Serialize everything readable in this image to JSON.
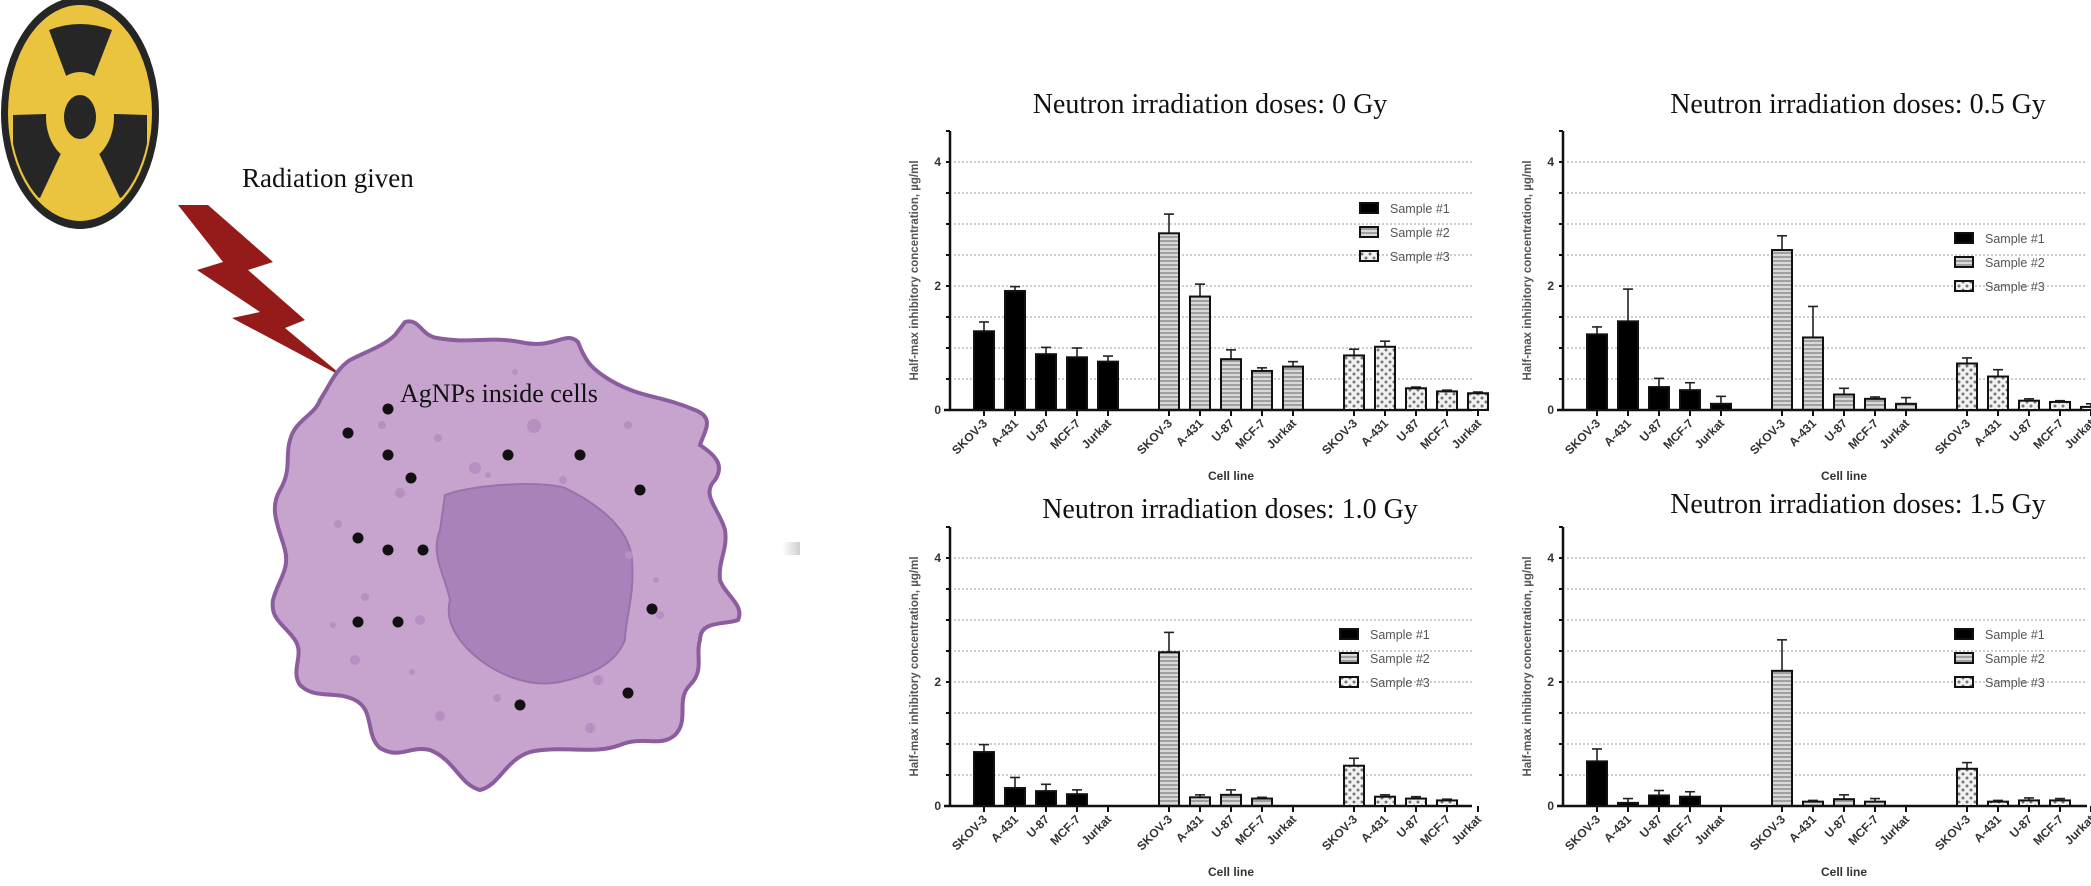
{
  "illustration": {
    "radiation_label": "Radiation given",
    "cell_label": "AgNPs inside cells",
    "colors": {
      "radiation_yellow": "#eac33f",
      "radiation_black": "#262626",
      "bolt_red": "#951b1b",
      "cell_fill": "#c7a4cd",
      "cell_border": "#8c5d9e",
      "nucleus_fill": "#a982b9"
    }
  },
  "chart_data": [
    {
      "type": "bar",
      "title": "Neutron irradiation doses: 0 Gy",
      "xlabel": "Cell line",
      "ylabel": "Half-max inhibitory concentration, µg/ml",
      "ylim": [
        0,
        4.5
      ],
      "yticks": [
        0,
        2,
        4
      ],
      "grid": true,
      "legend_position": "top-right",
      "groups": [
        "Sample #1",
        "Sample #2",
        "Sample #3"
      ],
      "categories": [
        "SKOV-3",
        "A-431",
        "U-87",
        "MCF-7",
        "Jurkat"
      ],
      "series": [
        {
          "name": "Sample #1",
          "pattern": "solid",
          "values": [
            1.27,
            1.92,
            0.9,
            0.85,
            0.78
          ],
          "errors": [
            0.15,
            0.07,
            0.11,
            0.15,
            0.09
          ]
        },
        {
          "name": "Sample #2",
          "pattern": "horizontal-stripes",
          "values": [
            2.85,
            1.83,
            0.82,
            0.63,
            0.7
          ],
          "errors": [
            0.31,
            0.2,
            0.15,
            0.05,
            0.08
          ]
        },
        {
          "name": "Sample #3",
          "pattern": "dots",
          "values": [
            0.88,
            1.02,
            0.35,
            0.3,
            0.27
          ],
          "errors": [
            0.1,
            0.09,
            0.02,
            0.02,
            0.02
          ]
        }
      ]
    },
    {
      "type": "bar",
      "title": "Neutron irradiation doses: 0.5 Gy",
      "xlabel": "Cell line",
      "ylabel": "Half-max inhibitory concentration, µg/ml",
      "ylim": [
        0,
        4.5
      ],
      "yticks": [
        0,
        2,
        4
      ],
      "grid": true,
      "legend_position": "top-right",
      "categories": [
        "SKOV-3",
        "A-431",
        "U-87",
        "MCF-7",
        "Jurkat"
      ],
      "series": [
        {
          "name": "Sample #1",
          "pattern": "solid",
          "values": [
            1.22,
            1.43,
            0.37,
            0.32,
            0.1
          ],
          "errors": [
            0.12,
            0.52,
            0.14,
            0.12,
            0.12
          ]
        },
        {
          "name": "Sample #2",
          "pattern": "horizontal-stripes",
          "values": [
            2.58,
            1.17,
            0.25,
            0.18,
            0.1
          ],
          "errors": [
            0.23,
            0.5,
            0.1,
            0.03,
            0.1
          ]
        },
        {
          "name": "Sample #3",
          "pattern": "dots",
          "values": [
            0.75,
            0.54,
            0.15,
            0.13,
            0.05
          ],
          "errors": [
            0.09,
            0.11,
            0.03,
            0.02,
            0.05
          ]
        }
      ]
    },
    {
      "type": "bar",
      "title": "Neutron irradiation doses: 1.0 Gy",
      "xlabel": "Cell line",
      "ylabel": "Half-max inhibitory concentration, µg/ml",
      "ylim": [
        0,
        4.5
      ],
      "yticks": [
        0,
        2,
        4
      ],
      "grid": true,
      "legend_position": "top-right",
      "categories": [
        "SKOV-3",
        "A-431",
        "U-87",
        "MCF-7",
        "Jurkat"
      ],
      "series": [
        {
          "name": "Sample #1",
          "pattern": "solid",
          "values": [
            0.87,
            0.29,
            0.24,
            0.19,
            0.0
          ],
          "errors": [
            0.12,
            0.17,
            0.11,
            0.07,
            0.0
          ]
        },
        {
          "name": "Sample #2",
          "pattern": "horizontal-stripes",
          "values": [
            2.48,
            0.14,
            0.18,
            0.12,
            0.0
          ],
          "errors": [
            0.32,
            0.04,
            0.08,
            0.02,
            0.0
          ]
        },
        {
          "name": "Sample #3",
          "pattern": "dots",
          "values": [
            0.65,
            0.15,
            0.12,
            0.09,
            0.0
          ],
          "errors": [
            0.12,
            0.03,
            0.03,
            0.02,
            0.0
          ]
        }
      ]
    },
    {
      "type": "bar",
      "title": "Neutron irradiation doses: 1.5 Gy",
      "xlabel": "Cell line",
      "ylabel": "Half-max inhibitory concentration, µg/ml",
      "ylim": [
        0,
        4.5
      ],
      "yticks": [
        0,
        2,
        4
      ],
      "grid": true,
      "legend_position": "top-right",
      "categories": [
        "SKOV-3",
        "A-431",
        "U-87",
        "MCF-7",
        "Jurkat"
      ],
      "series": [
        {
          "name": "Sample #1",
          "pattern": "solid",
          "values": [
            0.72,
            0.05,
            0.17,
            0.15,
            0.0
          ],
          "errors": [
            0.2,
            0.07,
            0.08,
            0.08,
            0.0
          ]
        },
        {
          "name": "Sample #2",
          "pattern": "horizontal-stripes",
          "values": [
            2.18,
            0.07,
            0.11,
            0.07,
            0.0
          ],
          "errors": [
            0.5,
            0.02,
            0.07,
            0.05,
            0.0
          ]
        },
        {
          "name": "Sample #3",
          "pattern": "dots",
          "values": [
            0.6,
            0.07,
            0.09,
            0.09,
            0.0
          ],
          "errors": [
            0.1,
            0.02,
            0.04,
            0.03,
            0.0
          ]
        }
      ]
    }
  ]
}
